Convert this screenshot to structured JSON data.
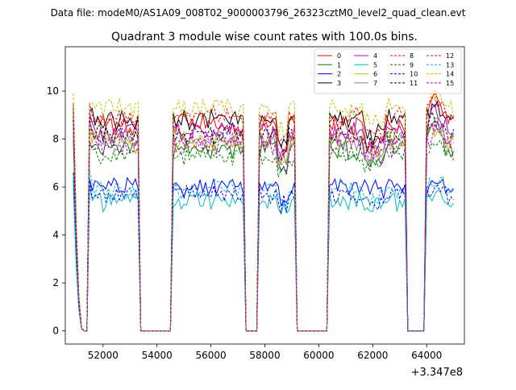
{
  "figure": {
    "suptitle": "Data file: modeM0/AS1A09_008T02_9000003796_26323cztM0_level2_quad_clean.evt",
    "offset_label": "+3.347e8"
  },
  "chart_data": {
    "type": "line",
    "title": "Quadrant 3 module wise count rates with 100.0s bins.",
    "xlabel": "",
    "ylabel": "",
    "xlim": [
      50600,
      65400
    ],
    "ylim": [
      -0.55,
      11.85
    ],
    "x_ticks": [
      52000,
      54000,
      56000,
      58000,
      60000,
      62000,
      64000
    ],
    "x_tick_labels": [
      "52000",
      "54000",
      "56000",
      "58000",
      "60000",
      "62000",
      "64000"
    ],
    "y_ticks": [
      0,
      2,
      4,
      6,
      8,
      10
    ],
    "y_tick_labels": [
      "0",
      "2",
      "4",
      "6",
      "8",
      "10"
    ],
    "legend_position": "upper right",
    "x_offset": "+3.347e8",
    "bin_seconds": 100,
    "series": [
      {
        "name": "0",
        "color": "#ff0000",
        "dash": "solid",
        "level": 8.6,
        "dip": 7.6,
        "end": 9.9
      },
      {
        "name": "1",
        "color": "#008000",
        "dash": "solid",
        "level": 7.6,
        "dip": 6.8,
        "end": 8.6
      },
      {
        "name": "2",
        "color": "#0000ff",
        "dash": "solid",
        "level": 6.0,
        "dip": 5.6,
        "end": 6.1
      },
      {
        "name": "3",
        "color": "#000000",
        "dash": "solid",
        "level": 8.8,
        "dip": 7.9,
        "end": 9.5
      },
      {
        "name": "4",
        "color": "#bf00bf",
        "dash": "solid",
        "level": 8.3,
        "dip": 7.4,
        "end": 9.2
      },
      {
        "name": "5",
        "color": "#00bfbf",
        "dash": "solid",
        "level": 5.4,
        "dip": 5.0,
        "end": 5.7
      },
      {
        "name": "6",
        "color": "#bfbf00",
        "dash": "solid",
        "level": 7.9,
        "dip": 7.0,
        "end": 8.4
      },
      {
        "name": "7",
        "color": "#808080",
        "dash": "solid",
        "level": 8.0,
        "dip": 7.1,
        "end": 8.7
      },
      {
        "name": "8",
        "color": "#ff0000",
        "dash": "dashed",
        "level": 8.9,
        "dip": 8.0,
        "end": 9.7
      },
      {
        "name": "9",
        "color": "#008000",
        "dash": "dashed",
        "level": 7.3,
        "dip": 6.6,
        "end": 8.0
      },
      {
        "name": "10",
        "color": "#0000ff",
        "dash": "dashed",
        "level": 5.7,
        "dip": 5.2,
        "end": 5.9
      },
      {
        "name": "11",
        "color": "#000000",
        "dash": "dashed",
        "level": 8.2,
        "dip": 7.5,
        "end": 8.9
      },
      {
        "name": "12",
        "color": "#bf00bf",
        "dash": "dashed",
        "level": 8.0,
        "dip": 7.2,
        "end": 8.6
      },
      {
        "name": "13",
        "color": "#00bfbf",
        "dash": "dashed",
        "level": 5.9,
        "dip": 5.3,
        "end": 6.3
      },
      {
        "name": "14",
        "color": "#bfbf00",
        "dash": "dashed",
        "level": 9.3,
        "dip": 8.4,
        "end": 10.0
      },
      {
        "name": "15",
        "color": "#bf00bf",
        "dash": "dashed",
        "level": 7.7,
        "dip": 7.0,
        "end": 8.3
      }
    ],
    "segments": [
      {
        "x_start": 50900,
        "x_end": 51250,
        "shape": "fall"
      },
      {
        "x_start": 51250,
        "x_end": 51400,
        "shape": "gap"
      },
      {
        "x_start": 51400,
        "x_end": 53300,
        "shape": "plateau"
      },
      {
        "x_start": 53300,
        "x_end": 54500,
        "shape": "gap"
      },
      {
        "x_start": 54500,
        "x_end": 57200,
        "shape": "plateau"
      },
      {
        "x_start": 57200,
        "x_end": 57700,
        "shape": "gap"
      },
      {
        "x_start": 57700,
        "x_end": 59100,
        "shape": "plateau"
      },
      {
        "x_start": 59100,
        "x_end": 60300,
        "shape": "gap"
      },
      {
        "x_start": 60300,
        "x_end": 63200,
        "shape": "plateau"
      },
      {
        "x_start": 63200,
        "x_end": 63900,
        "shape": "gap"
      },
      {
        "x_start": 63900,
        "x_end": 65000,
        "shape": "plateau"
      }
    ]
  }
}
